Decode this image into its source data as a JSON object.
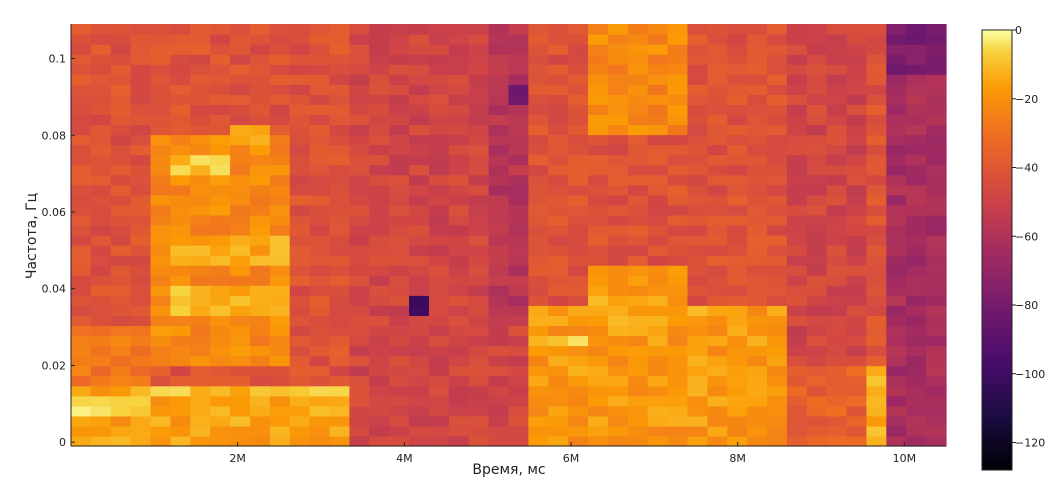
{
  "chart_data": {
    "type": "heatmap",
    "title": "",
    "xlabel": "Время, мс",
    "ylabel": "Частота, Гц",
    "x_ticks": [
      {
        "value": 2000000,
        "label": "2M"
      },
      {
        "value": 4000000,
        "label": "4M"
      },
      {
        "value": 6000000,
        "label": "6M"
      },
      {
        "value": 8000000,
        "label": "8M"
      },
      {
        "value": 10000000,
        "label": "10M"
      }
    ],
    "y_ticks": [
      {
        "value": 0,
        "label": "0"
      },
      {
        "value": 0.02,
        "label": "0.02"
      },
      {
        "value": 0.04,
        "label": "0.04"
      },
      {
        "value": 0.06,
        "label": "0.06"
      },
      {
        "value": 0.08,
        "label": "0.08"
      },
      {
        "value": 0.1,
        "label": "0.1"
      }
    ],
    "xlim": [
      0,
      10500000
    ],
    "ylim": [
      -0.001,
      0.109
    ],
    "colorbar": {
      "colormap": "inferno",
      "range": [
        -128,
        0
      ],
      "ticks": [
        {
          "value": 0,
          "label": "0"
        },
        {
          "value": -20,
          "label": "−20"
        },
        {
          "value": -40,
          "label": "−40"
        },
        {
          "value": -60,
          "label": "−60"
        },
        {
          "value": -80,
          "label": "−80"
        },
        {
          "value": -100,
          "label": "−100"
        },
        {
          "value": -120,
          "label": "−120"
        }
      ]
    },
    "approx_field": {
      "x_cells": 44,
      "y_cells": 42,
      "x_range": [
        0,
        10500000
      ],
      "y_range": [
        -0.001,
        0.109
      ],
      "background_db": -42,
      "noise_db": 6,
      "regions": [
        {
          "x": [
            0,
            3400000
          ],
          "y": [
            -0.001,
            0.014
          ],
          "db": -16
        },
        {
          "x": [
            0,
            1000000
          ],
          "y": [
            0.008,
            0.013
          ],
          "db": -8
        },
        {
          "x": [
            1000000,
            3400000
          ],
          "y": [
            0.011,
            0.015
          ],
          "db": -10
        },
        {
          "x": [
            0,
            1000000
          ],
          "y": [
            0.014,
            0.03
          ],
          "db": -28
        },
        {
          "x": [
            1000000,
            2700000
          ],
          "y": [
            0.02,
            0.08
          ],
          "db": -22
        },
        {
          "x": [
            1300000,
            1900000
          ],
          "y": [
            0.071,
            0.076
          ],
          "db": -8
        },
        {
          "x": [
            2000000,
            2500000
          ],
          "y": [
            0.078,
            0.082
          ],
          "db": -10
        },
        {
          "x": [
            1300000,
            2700000
          ],
          "y": [
            0.034,
            0.04
          ],
          "db": -12
        },
        {
          "x": [
            1300000,
            2700000
          ],
          "y": [
            0.045,
            0.055
          ],
          "db": -15
        },
        {
          "x": [
            3400000,
            5600000
          ],
          "y": [
            -0.001,
            0.109
          ],
          "db": -48
        },
        {
          "x": [
            4900000,
            5600000
          ],
          "y": [
            0.03,
            0.109
          ],
          "db": -58
        },
        {
          "x": [
            5300000,
            5600000
          ],
          "y": [
            0.088,
            0.092
          ],
          "db": -85
        },
        {
          "x": [
            4150000,
            4400000
          ],
          "y": [
            0.034,
            0.037
          ],
          "db": -100
        },
        {
          "x": [
            5600000,
            8700000
          ],
          "y": [
            -0.001,
            0.035
          ],
          "db": -18
        },
        {
          "x": [
            5600000,
            6300000
          ],
          "y": [
            0.024,
            0.029
          ],
          "db": -6
        },
        {
          "x": [
            6300000,
            7900000
          ],
          "y": [
            0.03,
            0.045
          ],
          "db": -16
        },
        {
          "x": [
            6300000,
            7300000
          ],
          "y": [
            0.08,
            0.109
          ],
          "db": -22
        },
        {
          "x": [
            7300000,
            8700000
          ],
          "y": [
            0.035,
            0.109
          ],
          "db": -42
        },
        {
          "x": [
            8700000,
            9600000
          ],
          "y": [
            -0.001,
            0.109
          ],
          "db": -48
        },
        {
          "x": [
            8700000,
            9600000
          ],
          "y": [
            0.0,
            0.02
          ],
          "db": -36
        },
        {
          "x": [
            9600000,
            9900000
          ],
          "y": [
            -0.001,
            0.02
          ],
          "db": -14
        },
        {
          "x": [
            9900000,
            10500000
          ],
          "y": [
            -0.001,
            0.109
          ],
          "db": -63
        },
        {
          "x": [
            9900000,
            10500000
          ],
          "y": [
            0.095,
            0.109
          ],
          "db": -78
        }
      ]
    }
  }
}
